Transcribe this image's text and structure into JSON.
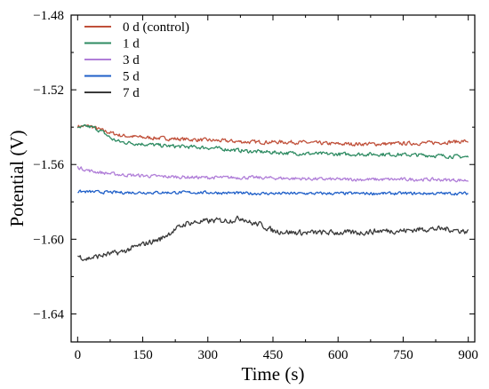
{
  "chart_data": {
    "type": "line",
    "xlabel": "Time (s)",
    "ylabel": "Potential (V)",
    "xlim": [
      -15,
      915
    ],
    "ylim": [
      -1.655,
      -1.48
    ],
    "xticks": [
      "0",
      "150",
      "300",
      "450",
      "600",
      "750",
      "900"
    ],
    "yticks": [
      "−1.48",
      "−1.52",
      "−1.56",
      "−1.60",
      "−1.64"
    ],
    "legend_position": "top-left",
    "grid": false,
    "series": [
      {
        "name": "0 d (control)",
        "color": "#c0503a",
        "noise": 0.0009,
        "x": [
          0,
          30,
          60,
          100,
          150,
          200,
          300,
          400,
          500,
          600,
          700,
          800,
          900
        ],
        "y": [
          -1.5395,
          -1.5395,
          -1.542,
          -1.5445,
          -1.5455,
          -1.546,
          -1.547,
          -1.548,
          -1.548,
          -1.549,
          -1.549,
          -1.5485,
          -1.5475
        ]
      },
      {
        "name": "1 d",
        "color": "#2e8b62",
        "noise": 0.0009,
        "x": [
          0,
          20,
          40,
          60,
          80,
          100,
          150,
          200,
          300,
          400,
          500,
          600,
          700,
          800,
          900
        ],
        "y": [
          -1.541,
          -1.5395,
          -1.5405,
          -1.543,
          -1.5465,
          -1.548,
          -1.549,
          -1.55,
          -1.551,
          -1.553,
          -1.554,
          -1.5545,
          -1.5545,
          -1.555,
          -1.556
        ]
      },
      {
        "name": "3 d",
        "color": "#b07ed8",
        "noise": 0.0008,
        "x": [
          0,
          30,
          60,
          100,
          150,
          200,
          300,
          400,
          500,
          600,
          700,
          800,
          900
        ],
        "y": [
          -1.5615,
          -1.5635,
          -1.5645,
          -1.5655,
          -1.566,
          -1.5665,
          -1.567,
          -1.567,
          -1.5675,
          -1.568,
          -1.568,
          -1.568,
          -1.5685
        ]
      },
      {
        "name": "5 d",
        "color": "#1f5fc8",
        "noise": 0.0007,
        "x": [
          0,
          100,
          200,
          300,
          400,
          500,
          600,
          700,
          800,
          900
        ],
        "y": [
          -1.5745,
          -1.575,
          -1.575,
          -1.575,
          -1.5755,
          -1.5755,
          -1.5755,
          -1.5755,
          -1.5755,
          -1.5755
        ]
      },
      {
        "name": "7 d",
        "color": "#3a3a3a",
        "noise": 0.0013,
        "x": [
          0,
          20,
          40,
          70,
          100,
          130,
          160,
          190,
          220,
          250,
          290,
          320,
          350,
          380,
          400,
          420,
          450,
          500,
          550,
          600,
          650,
          700,
          750,
          800,
          850,
          900
        ],
        "y": [
          -1.609,
          -1.6105,
          -1.6095,
          -1.608,
          -1.607,
          -1.6045,
          -1.602,
          -1.6,
          -1.5955,
          -1.5915,
          -1.5905,
          -1.59,
          -1.59,
          -1.5885,
          -1.5915,
          -1.592,
          -1.5955,
          -1.5965,
          -1.5965,
          -1.5965,
          -1.5965,
          -1.5955,
          -1.5955,
          -1.5945,
          -1.5945,
          -1.596
        ]
      }
    ]
  }
}
